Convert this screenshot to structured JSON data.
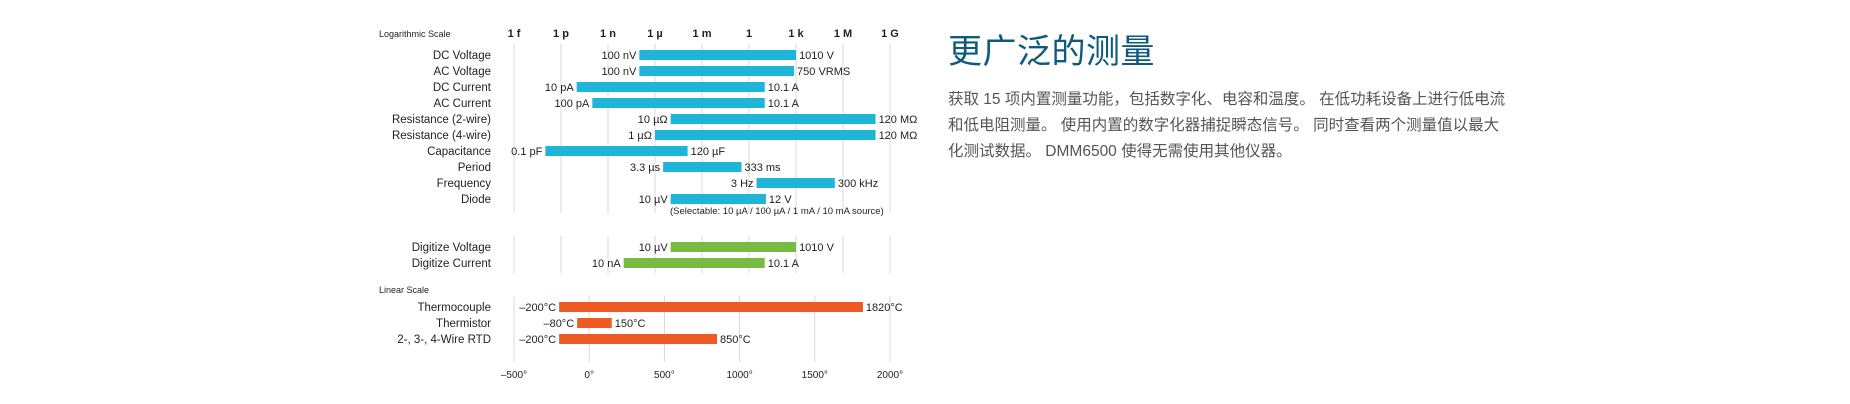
{
  "section": {
    "title": "更广泛的测量",
    "description": "获取 15 项内置测量功能，包括数字化、电容和温度。 在低功耗设备上进行低电流和低电阻测量。 使用内置的数字化器捕捉瞬态信号。 同时查看两个测量值以最大化测试数据。 DMM6500 使得无需使用其他仪器。"
  },
  "chart_data": [
    {
      "type": "bar",
      "orientation": "horizontal-range",
      "scale_label": "Logarithmic Scale",
      "axis": {
        "scale": "log10",
        "xlim_exponent": [
          -15,
          9
        ],
        "ticks": [
          {
            "label": "1 f",
            "exponent": -15
          },
          {
            "label": "1 p",
            "exponent": -12
          },
          {
            "label": "1 n",
            "exponent": -9
          },
          {
            "label": "1 µ",
            "exponent": -6
          },
          {
            "label": "1 m",
            "exponent": -3
          },
          {
            "label": "1",
            "exponent": 0
          },
          {
            "label": "1 k",
            "exponent": 3
          },
          {
            "label": "1 M",
            "exponent": 6
          },
          {
            "label": "1 G",
            "exponent": 9
          }
        ]
      },
      "color": "#1fb5d6",
      "groups": [
        {
          "name": "measure",
          "rows": [
            {
              "label": "DC Voltage",
              "low": -7,
              "high": 3.004,
              "low_label": "100 nV",
              "high_label": "1010 V"
            },
            {
              "label": "AC Voltage",
              "low": -7,
              "high": 2.875,
              "low_label": "100 nV",
              "high_label": "750 VRMS"
            },
            {
              "label": "DC Current",
              "low": -11,
              "high": 1.004,
              "low_label": "10 pA",
              "high_label": "10.1 A"
            },
            {
              "label": "AC Current",
              "low": -10,
              "high": 1.004,
              "low_label": "100 pA",
              "high_label": "10.1 A"
            },
            {
              "label": "Resistance (2-wire)",
              "low": -5,
              "high": 8.079,
              "low_label": "10 µΩ",
              "high_label": "120 MΩ"
            },
            {
              "label": "Resistance (4-wire)",
              "low": -6,
              "high": 8.079,
              "low_label": "1 µΩ",
              "high_label": "120 MΩ"
            },
            {
              "label": "Capacitance",
              "low": -13,
              "high": -3.92,
              "low_label": "0.1 pF",
              "high_label": "120 µF"
            },
            {
              "label": "Period",
              "low": -5.48,
              "high": -0.48,
              "low_label": "3.3 µs",
              "high_label": "333 ms"
            },
            {
              "label": "Frequency",
              "low": 0.48,
              "high": 5.48,
              "low_label": "3 Hz",
              "high_label": "300 kHz"
            },
            {
              "label": "Diode",
              "low": -5,
              "high": 1.08,
              "low_label": "10 µV",
              "high_label": "12 V"
            }
          ],
          "note": "(Selectable: 10 µA / 100 µA / 1 mA / 10 mA source)"
        },
        {
          "name": "digitize",
          "color": "#77bb41",
          "rows": [
            {
              "label": "Digitize Voltage",
              "low": -5,
              "high": 3.004,
              "low_label": "10 µV",
              "high_label": "1010 V"
            },
            {
              "label": "Digitize Current",
              "low": -8,
              "high": 1.004,
              "low_label": "10 nA",
              "high_label": "10.1 A"
            }
          ]
        }
      ]
    },
    {
      "type": "bar",
      "orientation": "horizontal-range",
      "scale_label": "Linear Scale",
      "axis": {
        "scale": "linear",
        "xlim": [
          -500,
          2000
        ],
        "ticks": [
          {
            "label": "–500°",
            "value": -500
          },
          {
            "label": "0°",
            "value": 0
          },
          {
            "label": "500°",
            "value": 500
          },
          {
            "label": "1000°",
            "value": 1000
          },
          {
            "label": "1500°",
            "value": 1500
          },
          {
            "label": "2000°",
            "value": 2000
          }
        ]
      },
      "color": "#ee5a24",
      "rows": [
        {
          "label": "Thermocouple",
          "low": -200,
          "high": 1820,
          "low_label": "–200°C",
          "high_label": "1820°C"
        },
        {
          "label": "Thermistor",
          "low": -80,
          "high": 150,
          "low_label": "–80°C",
          "high_label": "150°C"
        },
        {
          "label": "2-, 3-, 4-Wire RTD",
          "low": -200,
          "high": 850,
          "low_label": "–200°C",
          "high_label": "850°C"
        }
      ]
    }
  ]
}
